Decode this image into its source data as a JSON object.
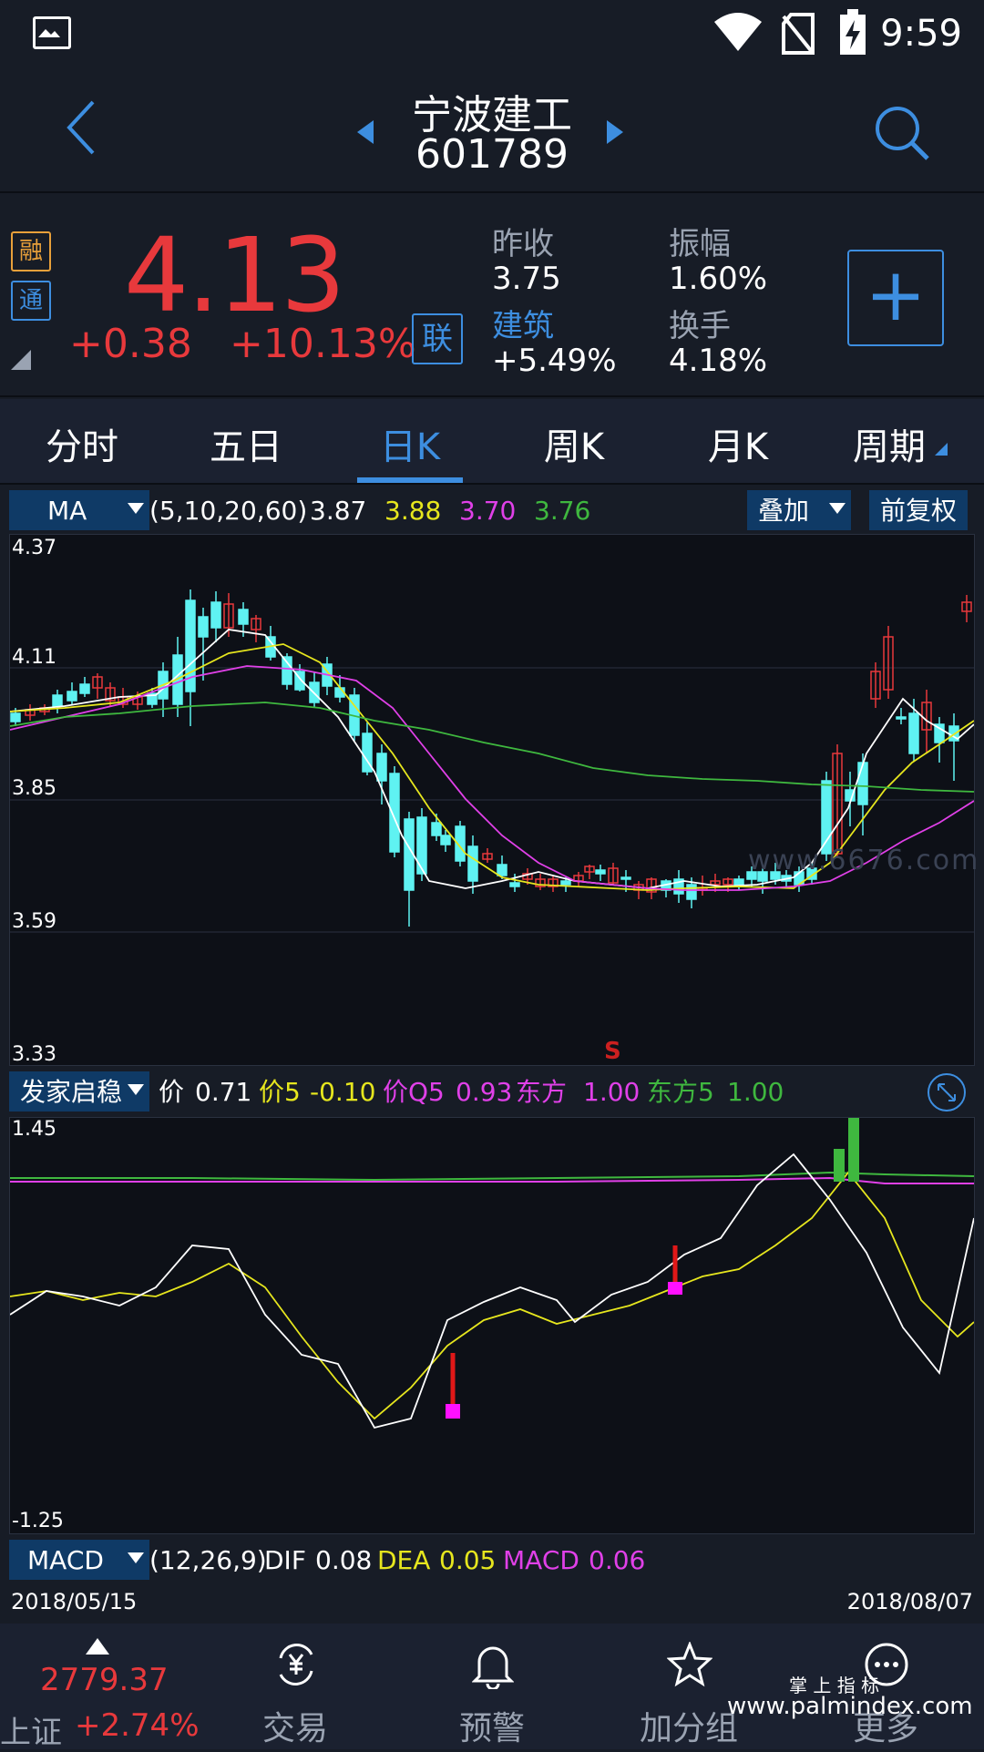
{
  "status": {
    "time": "9:59"
  },
  "header": {
    "name": "宁波建工",
    "code": "601789"
  },
  "quote": {
    "tag_rong": "融",
    "tag_tong": "通",
    "tag_lian": "联",
    "price": "4.13",
    "change": "+0.38",
    "change_pct": "+10.13%",
    "prev_close_label": "昨收",
    "prev_close": "3.75",
    "amplitude_label": "振幅",
    "amplitude": "1.60%",
    "sector_label": "建筑",
    "sector_change": "+5.49%",
    "turnover_label": "换手",
    "turnover": "4.18%"
  },
  "tabs": [
    "分时",
    "五日",
    "日K",
    "周K",
    "月K",
    "周期"
  ],
  "ma_bar": {
    "selector": "MA",
    "params": "(5,10,20,60)",
    "v1": "3.87",
    "v2": "3.88",
    "v3": "3.70",
    "v4": "3.76",
    "overlay": "叠加",
    "fq": "前复权"
  },
  "main_chart": {
    "y_top": "4.37",
    "y_2": "4.11",
    "y_3": "3.85",
    "y_4": "3.59",
    "y_bottom": "3.33",
    "signal": "S",
    "watermark": "www.6676.com"
  },
  "sub_bar": {
    "selector": "发家启稳",
    "l1": "价",
    "v1": "0.71",
    "l2": "价5",
    "v2": "-0.10",
    "l3": "价Q5",
    "v3": "0.93",
    "l4": "东方",
    "v4": "1.00",
    "l5": "东方5",
    "v5": "1.00"
  },
  "sub_chart": {
    "y_top": "1.45",
    "y_bottom": "-1.25"
  },
  "macd_bar": {
    "selector": "MACD",
    "params": "(12,26,9)",
    "l1": "DIF",
    "v1": "0.08",
    "l2": "DEA",
    "v2": "0.05",
    "l3": "MACD",
    "v3": "0.06"
  },
  "dates": {
    "start": "2018/05/15",
    "end": "2018/08/07"
  },
  "bottom_nav": {
    "index_value": "2779.37",
    "index_name": "上证",
    "index_change": "+2.74%",
    "trade": "交易",
    "alert": "预警",
    "group": "加分组",
    "more": "更多",
    "brand": "掌 上 指 标",
    "brand_url": "www.palmindex.com"
  },
  "colors": {
    "up": "#e8393c",
    "down": "#5ff2f2",
    "accent": "#3d8ee0",
    "ma5": "#ffffff",
    "ma10": "#e6e61e",
    "ma20": "#e040e8",
    "ma60": "#3fb83f"
  }
}
